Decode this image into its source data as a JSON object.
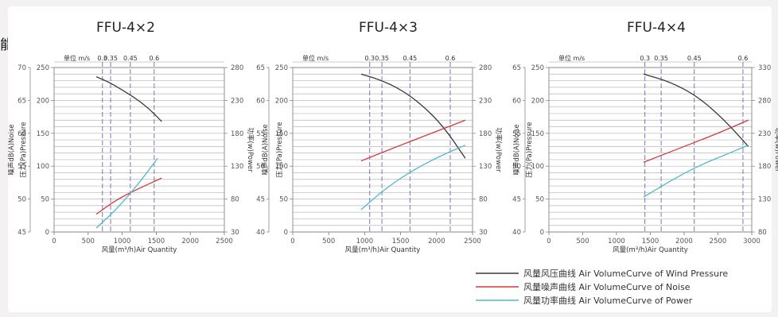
{
  "header_fragment": "能曲線:",
  "legend": [
    {
      "label": "风量风压曲线  Air VolumeCurve of Wind Pressure",
      "color": "#3a3a3a"
    },
    {
      "label": "风量噪声曲线  Air VolumeCurve of Noise",
      "color": "#d23a3a"
    },
    {
      "label": "风量功率曲线  Air VolumeCurve of Power",
      "color": "#4fb8cc"
    }
  ],
  "chart_data": [
    {
      "type": "line",
      "title": "FFU-4×2",
      "xlabel": "风量(m³/h)Air Quantity",
      "xlim": [
        0,
        2500
      ],
      "x_ticks": [
        "0",
        "500",
        "1000",
        "1500",
        "2000",
        "2500"
      ],
      "noise_label": "噪声dB(A)Noise",
      "noise_range": [
        45,
        70
      ],
      "noise_ticks": [
        "45",
        "50",
        "55",
        "60",
        "65",
        "70"
      ],
      "pressure_label": "压力(Pa)Pressure",
      "pressure_range": [
        0,
        250
      ],
      "pressure_ticks": [
        "0",
        "50",
        "100",
        "150",
        "200",
        "250"
      ],
      "power_label": "功率(w)Power",
      "power_range": [
        30,
        280
      ],
      "power_ticks": [
        "30",
        "80",
        "130",
        "180",
        "230",
        "280"
      ],
      "top_unit": "单位 m/s",
      "velocity_marks": [
        {
          "label": "0.3",
          "x": 710
        },
        {
          "label": "0.35",
          "x": 830
        },
        {
          "label": "0.45",
          "x": 1120
        },
        {
          "label": "0.6",
          "x": 1470
        }
      ],
      "series": [
        {
          "name": "风量风压曲线",
          "axis": "pressure",
          "color": "#3a3a3a",
          "x": [
            620,
            800,
            1000,
            1200,
            1400,
            1580
          ],
          "y": [
            236,
            228,
            216,
            203,
            187,
            168
          ]
        },
        {
          "name": "风量噪声曲线",
          "axis": "noise",
          "color": "#d23a3a",
          "x": [
            620,
            900,
            1200,
            1580
          ],
          "y": [
            47.7,
            49.8,
            51.4,
            53.2
          ]
        },
        {
          "name": "风量功率曲线",
          "axis": "power",
          "color": "#4fb8cc",
          "x": [
            620,
            900,
            1200,
            1520
          ],
          "y": [
            36,
            63,
            98,
            142
          ]
        }
      ]
    },
    {
      "type": "line",
      "title": "FFU-4×3",
      "xlabel": "风量(m³/h)Air Quantity",
      "xlim": [
        0,
        2500
      ],
      "x_ticks": [
        "0",
        "500",
        "1000",
        "1500",
        "2000",
        "2500"
      ],
      "noise_label": "噪声dB(A)Noise",
      "noise_range": [
        40,
        65
      ],
      "noise_ticks": [
        "40",
        "45",
        "50",
        "55",
        "60",
        "65"
      ],
      "pressure_label": "压力(Pa)Pressure",
      "pressure_range": [
        0,
        250
      ],
      "pressure_ticks": [
        "0",
        "50",
        "100",
        "150",
        "200",
        "250"
      ],
      "power_label": "功率(w)Power",
      "power_range": [
        30,
        280
      ],
      "power_ticks": [
        "30",
        "80",
        "130",
        "180",
        "230",
        "280"
      ],
      "top_unit": "单位 m/s",
      "velocity_marks": [
        {
          "label": "0.3",
          "x": 1070
        },
        {
          "label": "0.35",
          "x": 1240
        },
        {
          "label": "0.45",
          "x": 1630
        },
        {
          "label": "0.6",
          "x": 2190
        }
      ],
      "series": [
        {
          "name": "风量风压曲线",
          "axis": "pressure",
          "color": "#3a3a3a",
          "x": [
            950,
            1200,
            1500,
            1800,
            2100,
            2400
          ],
          "y": [
            240,
            232,
            217,
            193,
            160,
            112
          ]
        },
        {
          "name": "风量噪声曲线",
          "axis": "noise",
          "color": "#d23a3a",
          "x": [
            950,
            1500,
            2000,
            2400
          ],
          "y": [
            50.8,
            53.2,
            55.3,
            57.0
          ]
        },
        {
          "name": "风量功率曲线",
          "axis": "power",
          "color": "#4fb8cc",
          "x": [
            950,
            1300,
            1700,
            2100,
            2400
          ],
          "y": [
            64,
            97,
            126,
            148,
            162
          ]
        }
      ]
    },
    {
      "type": "line",
      "title": "FFU-4×4",
      "xlabel": "风量(m³/h)Air Quantity",
      "xlim": [
        0,
        3000
      ],
      "x_ticks": [
        "0",
        "500",
        "1000",
        "1500",
        "2000",
        "2500",
        "3000"
      ],
      "noise_label": "噪声dB(A)Noise",
      "noise_range": [
        40,
        65
      ],
      "noise_ticks": [
        "40",
        "45",
        "50",
        "55",
        "60",
        "65"
      ],
      "pressure_label": "压力(Pa)Pressure",
      "pressure_range": [
        0,
        250
      ],
      "pressure_ticks": [
        "0",
        "50",
        "100",
        "150",
        "200",
        "250"
      ],
      "power_label": "功率(w)Power",
      "power_range": [
        80,
        330
      ],
      "power_ticks": [
        "80",
        "130",
        "180",
        "230",
        "280",
        "330"
      ],
      "top_unit": "单位 m/s",
      "velocity_marks": [
        {
          "label": "0.3",
          "x": 1420
        },
        {
          "label": "0.35",
          "x": 1660
        },
        {
          "label": "0.45",
          "x": 2150
        },
        {
          "label": "0.6",
          "x": 2870
        }
      ],
      "series": [
        {
          "name": "风量风压曲线",
          "axis": "pressure",
          "color": "#3a3a3a",
          "x": [
            1400,
            1800,
            2200,
            2600,
            2950
          ],
          "y": [
            240,
            228,
            206,
            170,
            130
          ]
        },
        {
          "name": "风量噪声曲线",
          "axis": "noise",
          "color": "#d23a3a",
          "x": [
            1400,
            2000,
            2500,
            2950
          ],
          "y": [
            50.6,
            53.0,
            55.0,
            57.0
          ]
        },
        {
          "name": "风量功率曲线",
          "axis": "power",
          "color": "#4fb8cc",
          "x": [
            1400,
            1800,
            2200,
            2600,
            2950
          ],
          "y": [
            133,
            158,
            180,
            197,
            212
          ]
        }
      ]
    }
  ]
}
